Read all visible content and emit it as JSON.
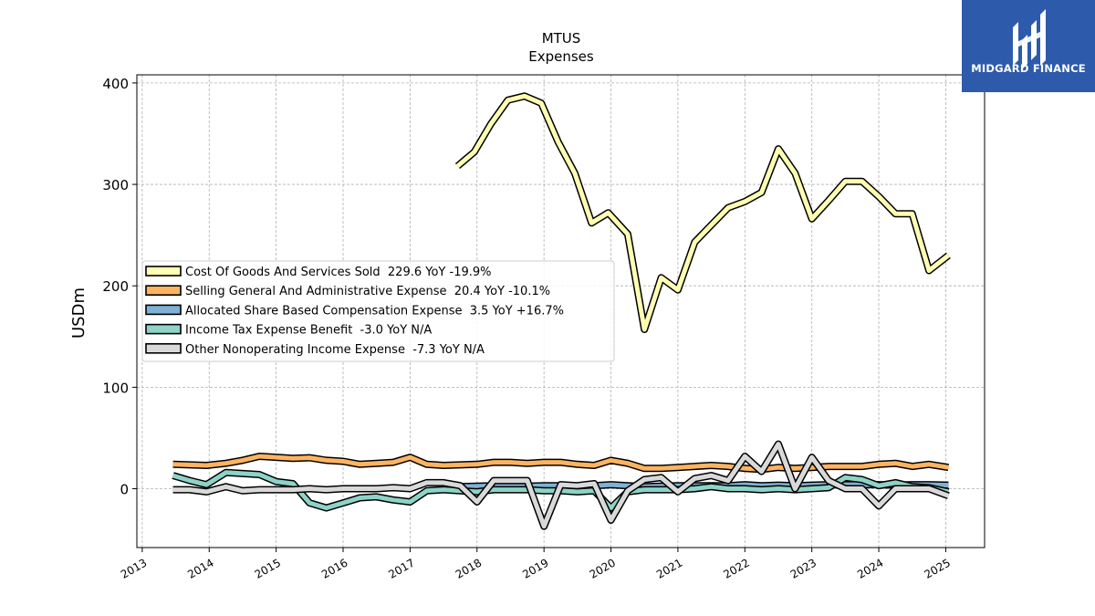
{
  "brand": {
    "name": "MIDGARD FINANCE",
    "bg_color": "#2d5aab"
  },
  "chart_data": {
    "type": "line",
    "title": "MTUS",
    "subtitle": "Expenses",
    "xlabel": "",
    "ylabel": "USDm",
    "xlim": [
      2012.92,
      2025.58
    ],
    "ylim": [
      -58,
      408
    ],
    "x_ticks": [
      "2013",
      "2014",
      "2015",
      "2016",
      "2017",
      "2018",
      "2019",
      "2020",
      "2021",
      "2022",
      "2023",
      "2024",
      "2025"
    ],
    "y_ticks": [
      0,
      100,
      200,
      300,
      400
    ],
    "grid": true,
    "legend_position": "center-left",
    "series": [
      {
        "name": "Cost Of Goods And Services Sold  229.6 YoY -19.9%",
        "color": "#ffffb3",
        "x": [
          2017.71,
          2017.96,
          2018.21,
          2018.46,
          2018.71,
          2018.96,
          2019.21,
          2019.46,
          2019.71,
          2019.96,
          2020.25,
          2020.5,
          2020.75,
          2021.0,
          2021.25,
          2021.5,
          2021.75,
          2022.0,
          2022.25,
          2022.5,
          2022.75,
          2023.0,
          2023.25,
          2023.5,
          2023.75,
          2024.0,
          2024.25,
          2024.5,
          2024.75,
          2025.04
        ],
        "y": [
          318,
          332,
          360,
          383,
          387,
          380,
          342,
          311,
          262,
          272,
          251,
          157,
          208,
          196,
          243,
          260,
          277,
          283,
          292,
          335,
          311,
          266,
          284,
          303,
          303,
          288,
          271,
          271,
          215,
          230
        ]
      },
      {
        "name": "Selling General And Administrative Expense  20.4 YoY -10.1%",
        "color": "#fdb462",
        "x": [
          2013.46,
          2013.71,
          2013.96,
          2014.25,
          2014.5,
          2014.75,
          2015.0,
          2015.25,
          2015.5,
          2015.75,
          2016.0,
          2016.25,
          2016.5,
          2016.75,
          2017.0,
          2017.25,
          2017.5,
          2017.75,
          2018.0,
          2018.25,
          2018.5,
          2018.75,
          2019.0,
          2019.25,
          2019.5,
          2019.75,
          2020.0,
          2020.25,
          2020.5,
          2020.75,
          2021.0,
          2021.25,
          2021.5,
          2021.75,
          2022.0,
          2022.25,
          2022.5,
          2022.75,
          2023.0,
          2023.25,
          2023.5,
          2023.75,
          2024.0,
          2024.25,
          2024.5,
          2024.75,
          2025.04
        ],
        "y": [
          24,
          23.5,
          23,
          25,
          28,
          32,
          31,
          30,
          30.5,
          28,
          27,
          24,
          25,
          26,
          31,
          24,
          23,
          23.5,
          24,
          26,
          26,
          25,
          26,
          26,
          24,
          23,
          28,
          25,
          20,
          20,
          21,
          22,
          23,
          22,
          20,
          19,
          21,
          20,
          21,
          22,
          22,
          22,
          24,
          25,
          22,
          24,
          21
        ]
      },
      {
        "name": "Allocated Share Based Compensation Expense  3.5 YoY +16.7%",
        "color": "#80b1d3",
        "x": [
          2017.71,
          2018.0,
          2018.25,
          2018.5,
          2018.75,
          2019.0,
          2019.25,
          2019.5,
          2019.75,
          2020.0,
          2020.25,
          2020.5,
          2020.75,
          2021.0,
          2021.25,
          2021.5,
          2021.75,
          2022.0,
          2022.25,
          2022.5,
          2022.75,
          2023.0,
          2023.25,
          2023.5,
          2023.75,
          2024.0,
          2024.25,
          2024.5,
          2024.75,
          2025.04
        ],
        "y": [
          2,
          2.5,
          3,
          2.5,
          2.5,
          3,
          3,
          2.5,
          3,
          4,
          3,
          2,
          2.5,
          3,
          3,
          3,
          3,
          4,
          3,
          3.5,
          3,
          3.5,
          4,
          4,
          4,
          4,
          3.5,
          4,
          4,
          3.5
        ]
      },
      {
        "name": "Income Tax Expense Benefit  -3.0 YoY N/A",
        "color": "#8dd3c7",
        "x": [
          2013.46,
          2013.71,
          2013.96,
          2014.25,
          2014.5,
          2014.75,
          2015.0,
          2015.25,
          2015.5,
          2015.75,
          2016.0,
          2016.25,
          2016.5,
          2016.75,
          2017.0,
          2017.25,
          2017.5,
          2017.75,
          2018.0,
          2018.25,
          2018.5,
          2018.75,
          2019.0,
          2019.25,
          2019.5,
          2019.75,
          2020.0,
          2020.25,
          2020.5,
          2020.75,
          2021.0,
          2021.25,
          2021.5,
          2021.75,
          2022.0,
          2022.25,
          2022.5,
          2022.75,
          2023.0,
          2023.25,
          2023.5,
          2023.75,
          2024.0,
          2024.25,
          2024.5,
          2024.75,
          2025.04
        ],
        "y": [
          13,
          8,
          4,
          16,
          15,
          14,
          7,
          5,
          -14,
          -19,
          -14,
          -9,
          -8,
          -11,
          -13,
          -2,
          -1,
          -2,
          -3,
          -1,
          -1,
          -1,
          -2,
          -2,
          -3,
          -2,
          -19,
          -3,
          -1,
          -1,
          -1,
          0,
          2,
          0,
          0,
          -1,
          0,
          -1,
          0,
          1,
          11,
          9,
          3,
          6,
          2,
          1,
          -3
        ]
      },
      {
        "name": "Other Nonoperating Income Expense  -7.3 YoY N/A",
        "color": "#d9d9d9",
        "x": [
          2013.46,
          2013.71,
          2013.96,
          2014.25,
          2014.5,
          2014.75,
          2015.0,
          2015.25,
          2015.5,
          2015.75,
          2016.0,
          2016.25,
          2016.5,
          2016.75,
          2017.0,
          2017.25,
          2017.5,
          2017.75,
          2018.0,
          2018.25,
          2018.5,
          2018.75,
          2019.0,
          2019.25,
          2019.5,
          2019.75,
          2020.0,
          2020.25,
          2020.5,
          2020.75,
          2021.0,
          2021.25,
          2021.5,
          2021.75,
          2022.0,
          2022.25,
          2022.5,
          2022.75,
          2023.0,
          2023.25,
          2023.5,
          2023.75,
          2024.0,
          2024.25,
          2024.5,
          2024.75,
          2025.04
        ],
        "y": [
          -1,
          -1,
          -3,
          2,
          -2,
          -1,
          -1,
          -1,
          0,
          -1,
          0,
          0,
          0,
          1,
          0,
          6,
          6,
          3,
          -13,
          8,
          8,
          8,
          -37,
          4,
          3,
          5,
          -31,
          -2,
          9,
          11,
          -3,
          10,
          13,
          8,
          32,
          17,
          44,
          0,
          31,
          8,
          0,
          0,
          -17,
          0,
          0,
          0,
          -7
        ]
      }
    ]
  }
}
